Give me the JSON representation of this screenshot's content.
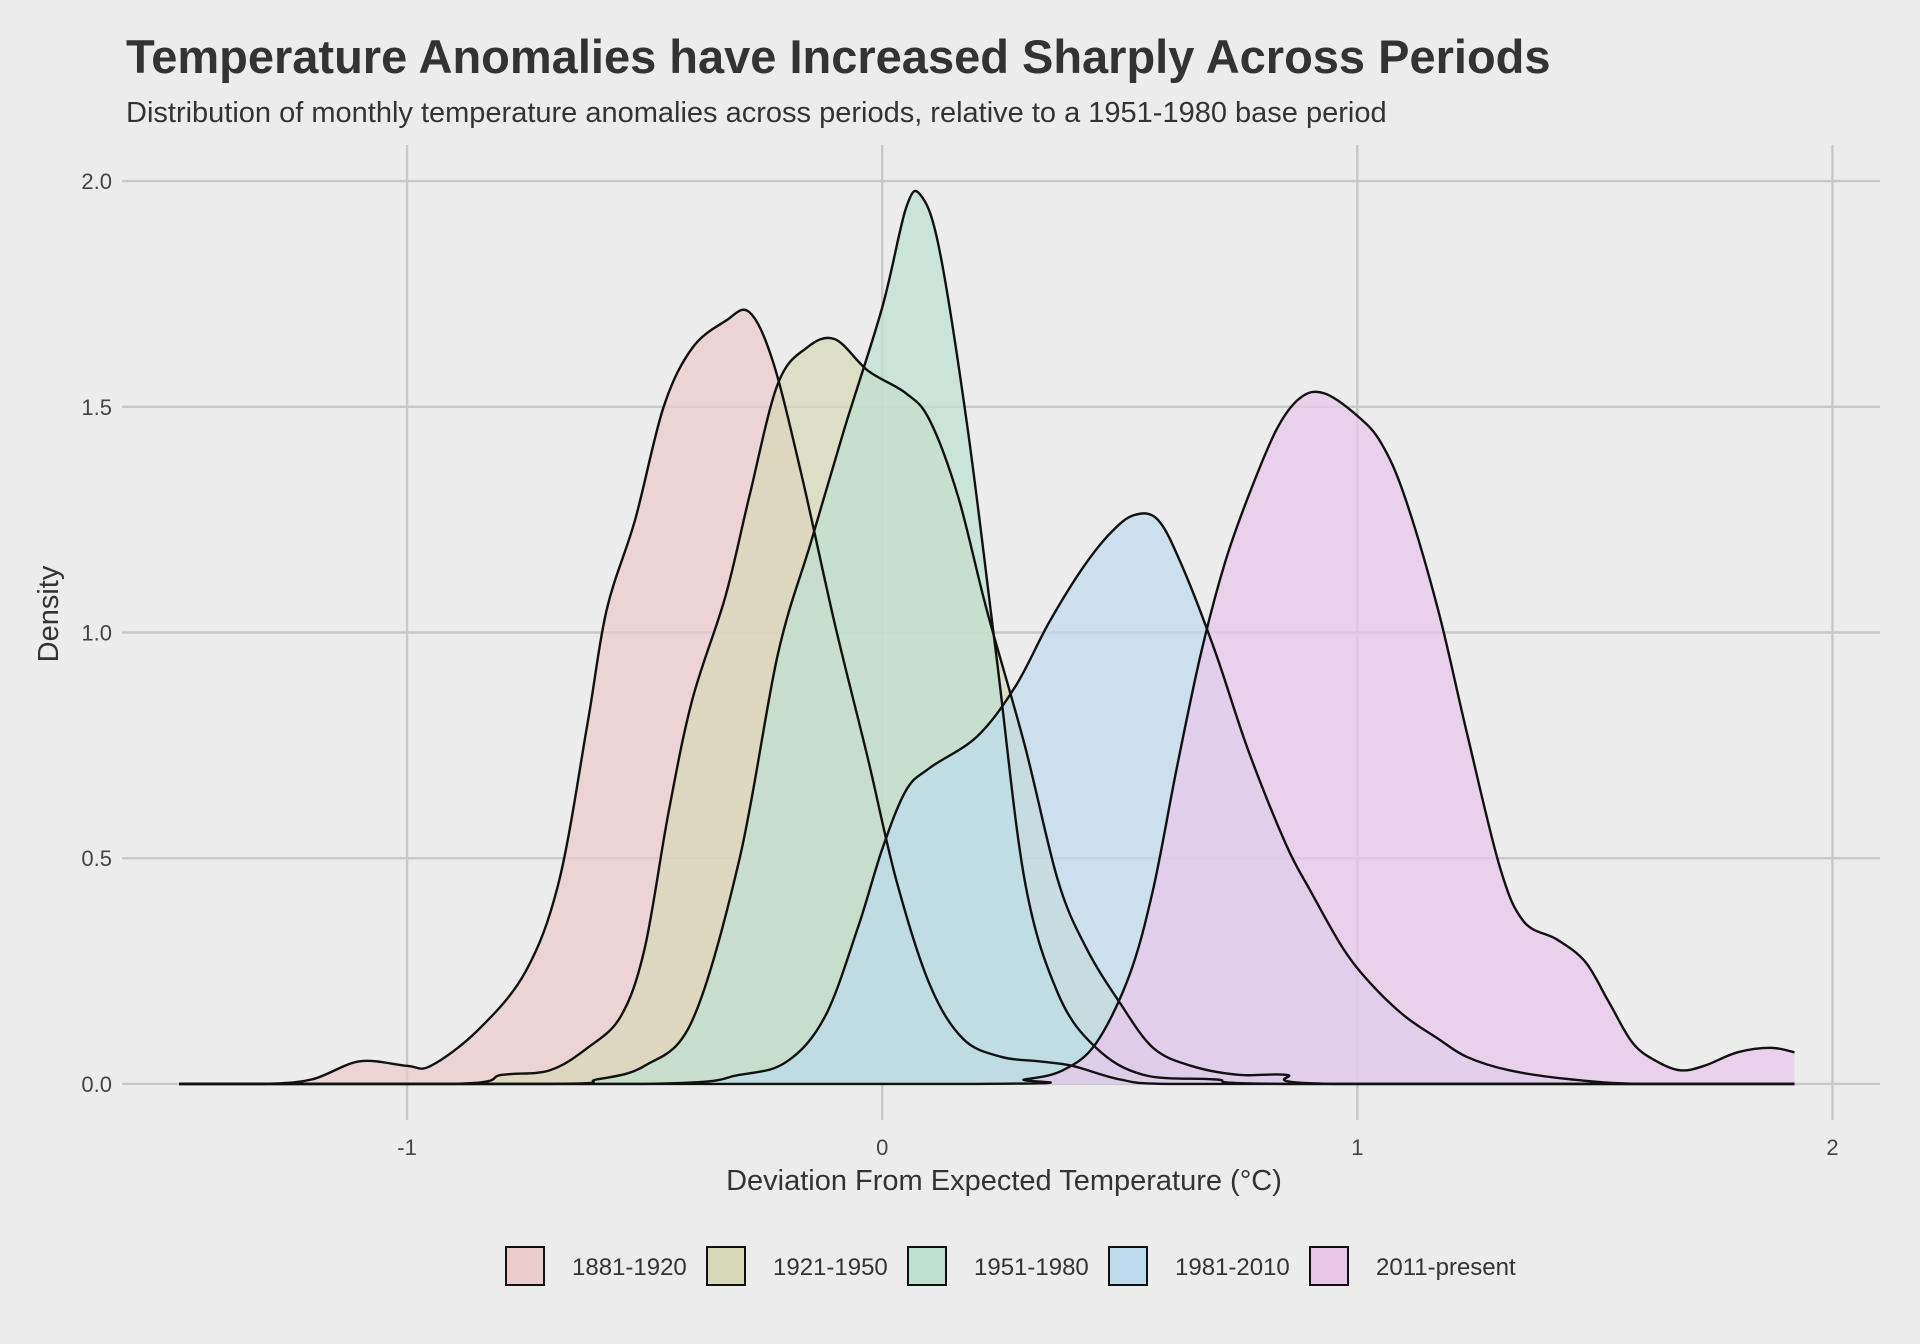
{
  "chart_data": {
    "type": "area",
    "subtype": "density",
    "title": "Temperature Anomalies have Increased Sharply Across Periods",
    "subtitle": "Distribution of monthly temperature anomalies across periods, relative to a 1951-1980 base period",
    "xlabel": "Deviation From Expected Temperature (°C)",
    "ylabel": "Density",
    "xlim": [
      -1.6,
      2.1
    ],
    "ylim": [
      -0.08,
      2.08
    ],
    "x_ticks": [
      -1,
      0,
      1,
      2
    ],
    "x_tick_labels": [
      "-1",
      "0",
      "1",
      "2"
    ],
    "y_ticks": [
      0,
      0.5,
      1,
      1.5,
      2
    ],
    "y_tick_labels": [
      "0.0",
      "0.5",
      "1.0",
      "1.5",
      "2.0"
    ],
    "grid": true,
    "legend_position": "bottom",
    "series": [
      {
        "name": "1881-1920",
        "color": "#eccbcb",
        "points": [
          [
            -1.48,
            0.0
          ],
          [
            -1.3,
            0.0
          ],
          [
            -1.2,
            0.01
          ],
          [
            -1.1,
            0.05
          ],
          [
            -1.0,
            0.04
          ],
          [
            -0.95,
            0.04
          ],
          [
            -0.85,
            0.12
          ],
          [
            -0.75,
            0.25
          ],
          [
            -0.68,
            0.45
          ],
          [
            -0.62,
            0.8
          ],
          [
            -0.58,
            1.05
          ],
          [
            -0.52,
            1.25
          ],
          [
            -0.46,
            1.5
          ],
          [
            -0.4,
            1.63
          ],
          [
            -0.33,
            1.69
          ],
          [
            -0.28,
            1.71
          ],
          [
            -0.23,
            1.6
          ],
          [
            -0.17,
            1.35
          ],
          [
            -0.1,
            1.02
          ],
          [
            -0.03,
            0.72
          ],
          [
            0.03,
            0.45
          ],
          [
            0.1,
            0.22
          ],
          [
            0.17,
            0.1
          ],
          [
            0.25,
            0.06
          ],
          [
            0.33,
            0.05
          ],
          [
            0.4,
            0.04
          ],
          [
            0.5,
            0.01
          ],
          [
            0.6,
            0.0
          ],
          [
            1.0,
            0.0
          ],
          [
            1.92,
            0.0
          ]
        ]
      },
      {
        "name": "1921-1950",
        "color": "#d7d8b7",
        "points": [
          [
            -1.48,
            0.0
          ],
          [
            -0.9,
            0.0
          ],
          [
            -0.8,
            0.02
          ],
          [
            -0.7,
            0.03
          ],
          [
            -0.62,
            0.08
          ],
          [
            -0.55,
            0.15
          ],
          [
            -0.5,
            0.3
          ],
          [
            -0.45,
            0.6
          ],
          [
            -0.4,
            0.85
          ],
          [
            -0.33,
            1.08
          ],
          [
            -0.28,
            1.3
          ],
          [
            -0.22,
            1.55
          ],
          [
            -0.16,
            1.63
          ],
          [
            -0.1,
            1.65
          ],
          [
            -0.03,
            1.58
          ],
          [
            0.05,
            1.53
          ],
          [
            0.1,
            1.47
          ],
          [
            0.16,
            1.3
          ],
          [
            0.22,
            1.05
          ],
          [
            0.3,
            0.75
          ],
          [
            0.37,
            0.45
          ],
          [
            0.43,
            0.3
          ],
          [
            0.5,
            0.18
          ],
          [
            0.57,
            0.08
          ],
          [
            0.65,
            0.04
          ],
          [
            0.75,
            0.02
          ],
          [
            0.85,
            0.02
          ],
          [
            0.95,
            0.0
          ],
          [
            1.92,
            0.0
          ]
        ]
      },
      {
        "name": "1951-1980",
        "color": "#bee0d1",
        "points": [
          [
            -1.48,
            0.0
          ],
          [
            -0.7,
            0.0
          ],
          [
            -0.6,
            0.01
          ],
          [
            -0.5,
            0.04
          ],
          [
            -0.4,
            0.14
          ],
          [
            -0.3,
            0.5
          ],
          [
            -0.22,
            0.95
          ],
          [
            -0.15,
            1.2
          ],
          [
            -0.08,
            1.45
          ],
          [
            0.0,
            1.72
          ],
          [
            0.05,
            1.94
          ],
          [
            0.08,
            1.97
          ],
          [
            0.12,
            1.85
          ],
          [
            0.18,
            1.45
          ],
          [
            0.24,
            0.95
          ],
          [
            0.3,
            0.45
          ],
          [
            0.37,
            0.2
          ],
          [
            0.45,
            0.08
          ],
          [
            0.55,
            0.02
          ],
          [
            0.7,
            0.01
          ],
          [
            0.85,
            0.0
          ],
          [
            1.92,
            0.0
          ]
        ]
      },
      {
        "name": "1981-2010",
        "color": "#bedbec",
        "points": [
          [
            -1.48,
            0.0
          ],
          [
            -0.5,
            0.0
          ],
          [
            -0.3,
            0.02
          ],
          [
            -0.2,
            0.05
          ],
          [
            -0.12,
            0.15
          ],
          [
            -0.05,
            0.35
          ],
          [
            0.0,
            0.52
          ],
          [
            0.05,
            0.65
          ],
          [
            0.1,
            0.7
          ],
          [
            0.2,
            0.77
          ],
          [
            0.28,
            0.88
          ],
          [
            0.35,
            1.02
          ],
          [
            0.42,
            1.14
          ],
          [
            0.48,
            1.22
          ],
          [
            0.53,
            1.26
          ],
          [
            0.58,
            1.25
          ],
          [
            0.63,
            1.15
          ],
          [
            0.7,
            0.96
          ],
          [
            0.77,
            0.74
          ],
          [
            0.85,
            0.53
          ],
          [
            0.9,
            0.43
          ],
          [
            0.97,
            0.3
          ],
          [
            1.03,
            0.22
          ],
          [
            1.1,
            0.15
          ],
          [
            1.17,
            0.1
          ],
          [
            1.23,
            0.06
          ],
          [
            1.32,
            0.03
          ],
          [
            1.45,
            0.01
          ],
          [
            1.6,
            0.0
          ],
          [
            1.92,
            0.0
          ]
        ]
      },
      {
        "name": "2011-present",
        "color": "#e8c6ea",
        "points": [
          [
            -1.48,
            0.0
          ],
          [
            0.2,
            0.0
          ],
          [
            0.3,
            0.01
          ],
          [
            0.38,
            0.03
          ],
          [
            0.45,
            0.09
          ],
          [
            0.52,
            0.24
          ],
          [
            0.57,
            0.43
          ],
          [
            0.62,
            0.7
          ],
          [
            0.67,
            0.95
          ],
          [
            0.72,
            1.15
          ],
          [
            0.77,
            1.3
          ],
          [
            0.83,
            1.45
          ],
          [
            0.88,
            1.52
          ],
          [
            0.93,
            1.53
          ],
          [
            1.0,
            1.48
          ],
          [
            1.05,
            1.42
          ],
          [
            1.1,
            1.3
          ],
          [
            1.17,
            1.05
          ],
          [
            1.23,
            0.78
          ],
          [
            1.3,
            0.48
          ],
          [
            1.35,
            0.36
          ],
          [
            1.42,
            0.32
          ],
          [
            1.48,
            0.27
          ],
          [
            1.53,
            0.18
          ],
          [
            1.58,
            0.09
          ],
          [
            1.63,
            0.05
          ],
          [
            1.68,
            0.03
          ],
          [
            1.73,
            0.04
          ],
          [
            1.8,
            0.07
          ],
          [
            1.87,
            0.08
          ],
          [
            1.92,
            0.07
          ]
        ]
      }
    ]
  }
}
